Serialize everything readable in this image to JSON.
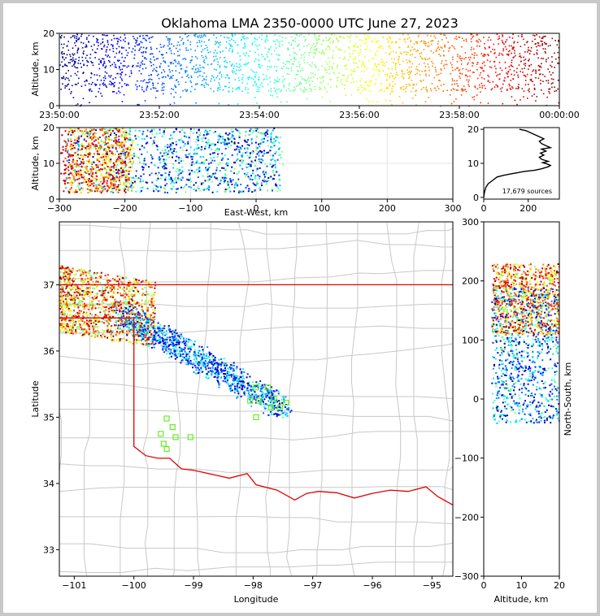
{
  "title": "Oklahoma LMA 2350-0000 UTC June 27, 2023",
  "source_count_label": "17,679 sources",
  "colors": {
    "state_border": "#e00000",
    "county_line": "#c8c8c8",
    "station": "#66ee22"
  },
  "chart_data": [
    {
      "type": "scatter",
      "id": "time-height",
      "xlabel": "",
      "ylabel": "Altitude, km",
      "x_ticks": [
        "23:50:00",
        "23:52:00",
        "23:54:00",
        "23:56:00",
        "23:58:00",
        "00:00:00"
      ],
      "x_range_minutes": [
        0,
        10
      ],
      "ylim": [
        0,
        20
      ],
      "y_ticks": [
        0,
        10,
        20
      ],
      "color_by": "time (jet colormap)"
    },
    {
      "type": "scatter",
      "id": "ew-altitude",
      "xlabel": "East-West, km",
      "ylabel": "Altitude, km",
      "xlim": [
        -300,
        300
      ],
      "x_ticks": [
        -300,
        -200,
        -100,
        0,
        100,
        200,
        300
      ],
      "ylim": [
        0,
        20
      ],
      "y_ticks": [
        0,
        10,
        20
      ],
      "grid": true
    },
    {
      "type": "line",
      "id": "altitude-histogram",
      "xlabel": "",
      "ylabel": "",
      "xlim": [
        0,
        340
      ],
      "x_ticks": [
        0,
        200
      ],
      "ylim": [
        -0.5,
        20.5
      ],
      "y_ticks": [
        0,
        10,
        20
      ],
      "annotation": "17,679 sources",
      "series": [
        {
          "points": [
            [
              0,
              0
            ],
            [
              2,
              1
            ],
            [
              5,
              2
            ],
            [
              10,
              3
            ],
            [
              20,
              4
            ],
            [
              40,
              5
            ],
            [
              60,
              6
            ],
            [
              90,
              6.5
            ],
            [
              130,
              7
            ],
            [
              180,
              7.6
            ],
            [
              230,
              8
            ],
            [
              260,
              8.4
            ],
            [
              290,
              9
            ],
            [
              300,
              9.4
            ],
            [
              285,
              9.8
            ],
            [
              265,
              10.2
            ],
            [
              290,
              10.6
            ],
            [
              260,
              11.2
            ],
            [
              250,
              11.8
            ],
            [
              270,
              12.4
            ],
            [
              255,
              13
            ],
            [
              280,
              13.6
            ],
            [
              260,
              14.2
            ],
            [
              300,
              14.6
            ],
            [
              280,
              15.2
            ],
            [
              260,
              15.8
            ],
            [
              250,
              16.5
            ],
            [
              270,
              17.2
            ],
            [
              250,
              17.8
            ],
            [
              230,
              18.4
            ],
            [
              210,
              19
            ],
            [
              190,
              19.6
            ],
            [
              160,
              20
            ]
          ]
        }
      ]
    },
    {
      "type": "scatter",
      "id": "plan-view",
      "xlabel": "Longitude",
      "ylabel": "Latitude",
      "xlim": [
        -101.25,
        -94.65
      ],
      "ylim": [
        32.6,
        37.95
      ],
      "x_ticks": [
        -101,
        -100,
        -99,
        -98,
        -97,
        -96,
        -95
      ],
      "y_ticks": [
        33,
        34,
        35,
        36,
        37
      ],
      "stations": [
        [
          -97.95,
          35.45
        ],
        [
          -97.75,
          35.45
        ],
        [
          -98.05,
          35.25
        ],
        [
          -97.9,
          35.25
        ],
        [
          -97.65,
          35.28
        ],
        [
          -97.7,
          35.15
        ],
        [
          -97.55,
          35.15
        ],
        [
          -97.45,
          35.22
        ],
        [
          -97.95,
          35
        ],
        [
          -99.45,
          34.98
        ],
        [
          -99.35,
          34.85
        ],
        [
          -99.55,
          34.75
        ],
        [
          -99.3,
          34.7
        ],
        [
          -99.05,
          34.7
        ],
        [
          -99.5,
          34.6
        ],
        [
          -99.45,
          34.52
        ]
      ]
    },
    {
      "type": "scatter",
      "id": "altitude-ns",
      "xlabel": "Altitude, km",
      "ylabel": "North-South, km",
      "xlim": [
        0,
        20
      ],
      "x_ticks": [
        0,
        10,
        20
      ],
      "ylim": [
        -300,
        300
      ],
      "y_ticks": [
        -300,
        -200,
        -100,
        0,
        100,
        200,
        300
      ]
    }
  ]
}
